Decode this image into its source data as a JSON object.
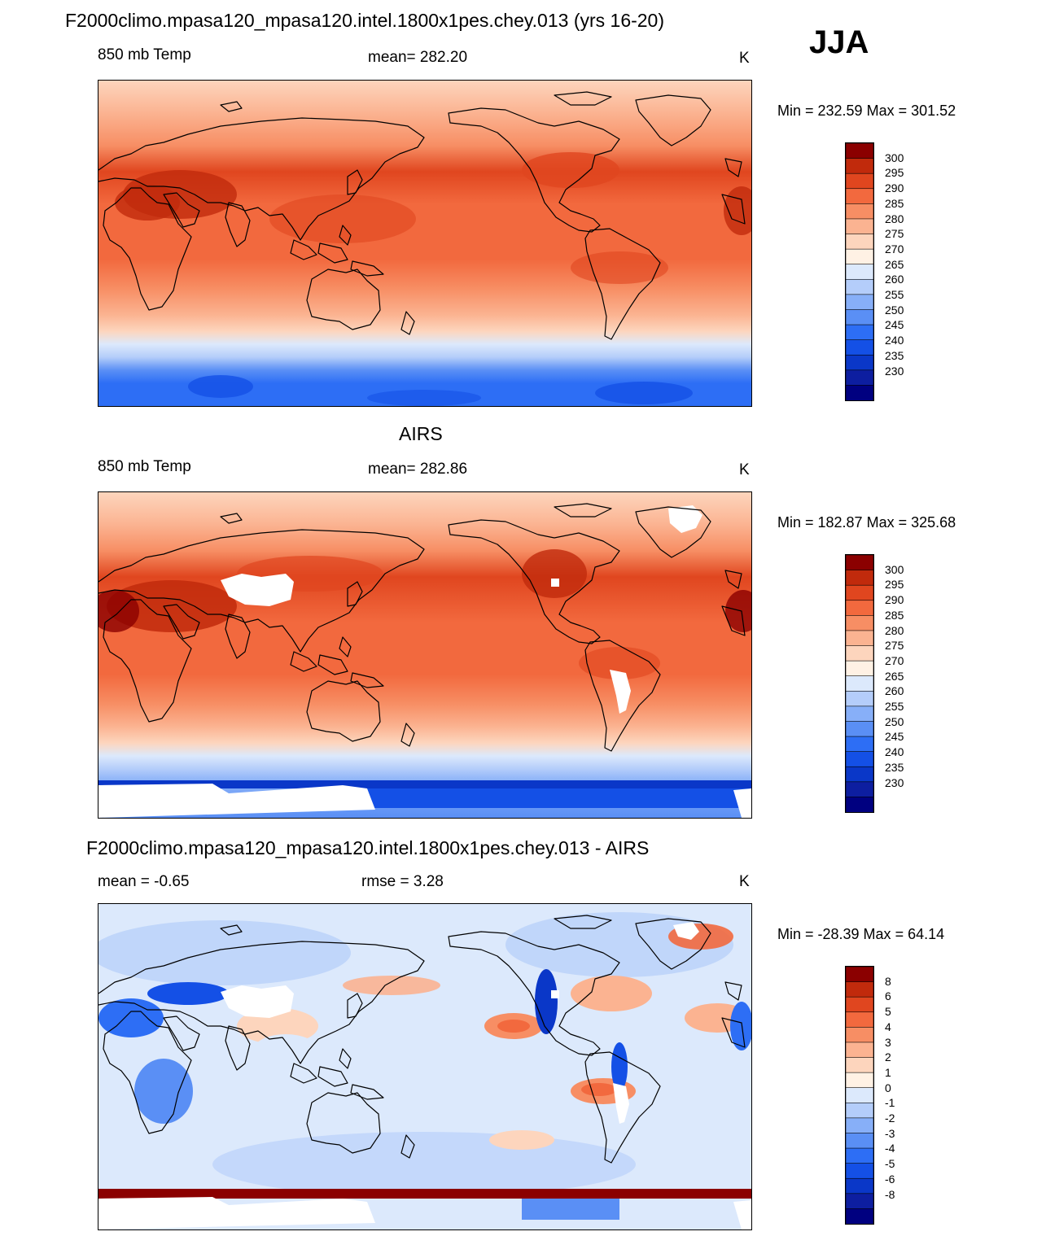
{
  "season": "JJA",
  "colors": {
    "warm_palette": [
      "#000080",
      "#0d1ea0",
      "#0a37c8",
      "#1450e6",
      "#2d6ef5",
      "#5a8ff5",
      "#87aff8",
      "#b4cdfa",
      "#dce9fc",
      "#fff1e4",
      "#fdd5bd",
      "#fbb391",
      "#f78e64",
      "#f2693e",
      "#e0461f",
      "#c12a0c",
      "#8b0000"
    ],
    "diff_palette": [
      "#000080",
      "#0d1ea0",
      "#0a37c8",
      "#1450e6",
      "#2d6ef5",
      "#5a8ff5",
      "#87aff8",
      "#b4cdfa",
      "#dce9fc",
      "#fff1e4",
      "#fdd5bd",
      "#fbb391",
      "#f78e64",
      "#f2693e",
      "#e0461f",
      "#c12a0c",
      "#8b0000"
    ]
  },
  "chart_data": [
    {
      "type": "heatmap",
      "title": "F2000climo.mpasa120_mpasa120.intel.1800x1pes.chey.013 (yrs 16-20)",
      "left_label": "850 mb Temp",
      "center_label": "mean= 282.20",
      "units": "K",
      "minmax": "Min = 232.59 Max = 301.52",
      "colorbar_levels": [
        "300",
        "295",
        "290",
        "285",
        "280",
        "275",
        "270",
        "265",
        "260",
        "255",
        "250",
        "245",
        "240",
        "235",
        "230"
      ],
      "projection": "global lat-lon, centered on 180",
      "zonal_profile_K": [
        {
          "lat": 90,
          "value": 272
        },
        {
          "lat": 70,
          "value": 276
        },
        {
          "lat": 55,
          "value": 282
        },
        {
          "lat": 40,
          "value": 291
        },
        {
          "lat": 20,
          "value": 291
        },
        {
          "lat": 0,
          "value": 290
        },
        {
          "lat": -20,
          "value": 287
        },
        {
          "lat": -35,
          "value": 279
        },
        {
          "lat": -50,
          "value": 270
        },
        {
          "lat": -60,
          "value": 262
        },
        {
          "lat": -70,
          "value": 250
        },
        {
          "lat": -85,
          "value": 242
        }
      ]
    },
    {
      "type": "heatmap",
      "title": "AIRS",
      "left_label": "850 mb Temp",
      "center_label": "mean= 282.86",
      "units": "K",
      "minmax": "Min = 182.87 Max = 325.68",
      "colorbar_levels": [
        "300",
        "295",
        "290",
        "285",
        "280",
        "275",
        "270",
        "265",
        "260",
        "255",
        "250",
        "245",
        "240",
        "235",
        "230"
      ],
      "projection": "global lat-lon, centered on 180",
      "zonal_profile_K": [
        {
          "lat": 90,
          "value": 273
        },
        {
          "lat": 70,
          "value": 277
        },
        {
          "lat": 55,
          "value": 284
        },
        {
          "lat": 40,
          "value": 292
        },
        {
          "lat": 20,
          "value": 292
        },
        {
          "lat": 0,
          "value": 290
        },
        {
          "lat": -20,
          "value": 287
        },
        {
          "lat": -35,
          "value": 279
        },
        {
          "lat": -50,
          "value": 270
        },
        {
          "lat": -60,
          "value": 261
        },
        {
          "lat": -70,
          "value": 248
        },
        {
          "lat": -85,
          "value": 238
        }
      ]
    },
    {
      "type": "heatmap",
      "title": "F2000climo.mpasa120_mpasa120.intel.1800x1pes.chey.013 - AIRS",
      "left_label": "mean =  -0.65",
      "center_label": "rmse =   3.28",
      "units": "K",
      "minmax": "Min = -28.39 Max =  64.14",
      "colorbar_levels": [
        "8",
        "6",
        "5",
        "4",
        "3",
        "2",
        "1",
        "0",
        "-1",
        "-2",
        "-3",
        "-4",
        "-5",
        "-6",
        "-8"
      ],
      "projection": "global lat-lon, centered on 180"
    }
  ]
}
